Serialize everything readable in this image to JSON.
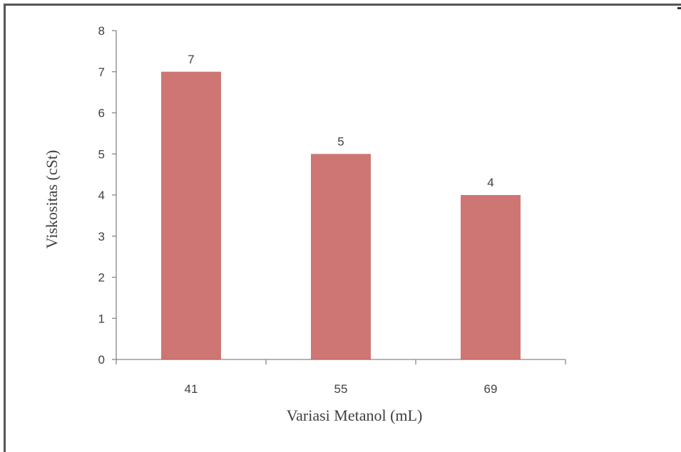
{
  "chart_data": {
    "type": "bar",
    "title": "",
    "xlabel": "Variasi Metanol (mL)",
    "ylabel": "Viskositas (cSt)",
    "categories": [
      "41",
      "55",
      "69"
    ],
    "values": [
      7,
      5,
      4
    ],
    "data_labels": [
      "7",
      "5",
      "4"
    ],
    "ylim": [
      0,
      8
    ],
    "yticks": [
      0,
      1,
      2,
      3,
      4,
      5,
      6,
      7,
      8
    ],
    "grid": false,
    "legend": "none",
    "bar_color": "#C0504D"
  }
}
